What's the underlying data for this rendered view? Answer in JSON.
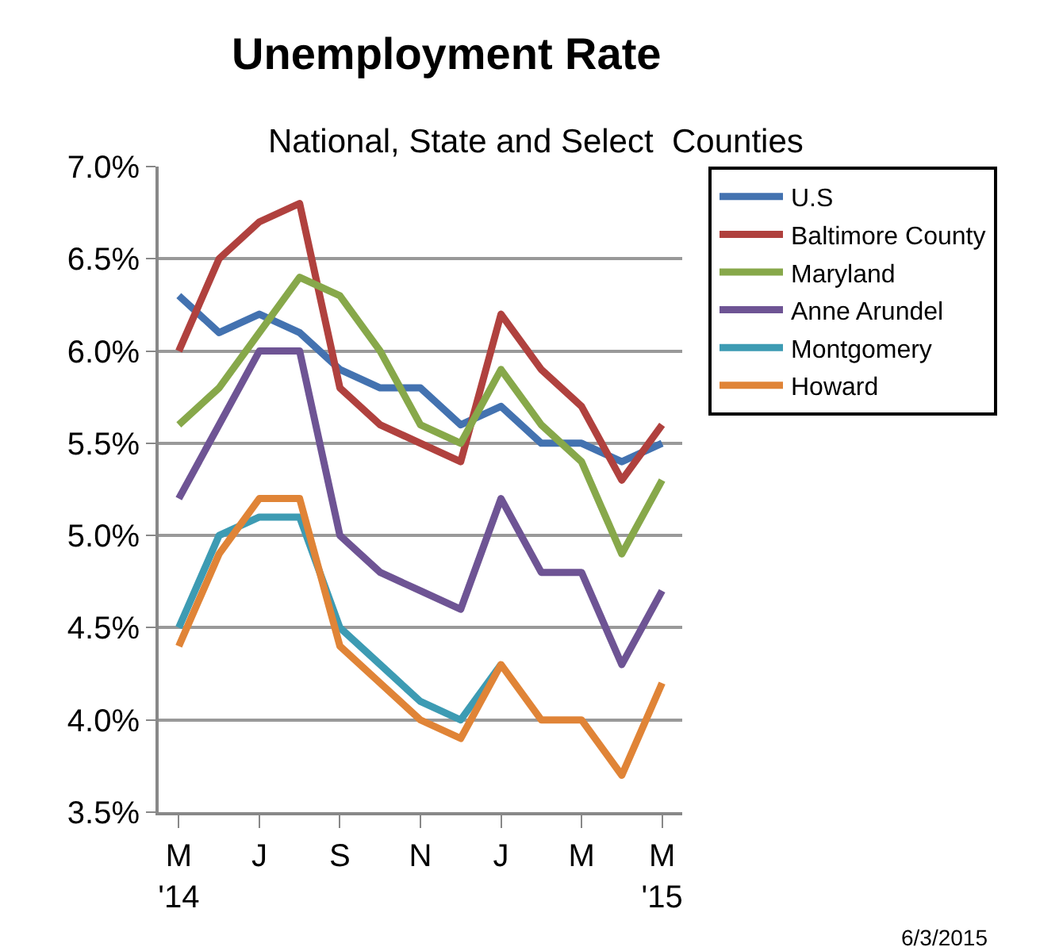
{
  "chart_data": {
    "type": "line",
    "title": "Unemployment Rate",
    "subtitle": "National, State and Select  Counties",
    "categories": [
      "M\n'14",
      null,
      "J",
      null,
      "S",
      null,
      "N",
      null,
      "J",
      null,
      "M",
      null,
      "M\n'15"
    ],
    "series": [
      {
        "name": "U.S",
        "color": "#4372b0",
        "values": [
          6.3,
          6.1,
          6.2,
          6.1,
          5.9,
          5.8,
          5.8,
          5.6,
          5.7,
          5.5,
          5.5,
          5.4,
          5.5
        ]
      },
      {
        "name": "Baltimore County",
        "color": "#b0413e",
        "values": [
          6.0,
          6.5,
          6.7,
          6.8,
          5.8,
          5.6,
          5.5,
          5.4,
          6.2,
          5.9,
          5.7,
          5.3,
          5.6
        ]
      },
      {
        "name": "Maryland",
        "color": "#87a84a",
        "values": [
          5.6,
          5.8,
          6.1,
          6.4,
          6.3,
          6.0,
          5.6,
          5.5,
          5.9,
          5.6,
          5.4,
          4.9,
          5.3
        ]
      },
      {
        "name": "Anne Arundel",
        "color": "#6e5494",
        "values": [
          5.2,
          5.6,
          6.0,
          6.0,
          5.0,
          4.8,
          4.7,
          4.6,
          5.2,
          4.8,
          4.8,
          4.3,
          4.7
        ]
      },
      {
        "name": "Montgomery",
        "color": "#3d9bb3",
        "values": [
          4.5,
          5.0,
          5.1,
          5.1,
          4.5,
          4.3,
          4.1,
          4.0,
          4.3,
          null,
          null,
          null,
          null
        ]
      },
      {
        "name": "Howard",
        "color": "#e08437",
        "values": [
          4.4,
          4.9,
          5.2,
          5.2,
          4.4,
          4.2,
          4.0,
          3.9,
          4.3,
          4.0,
          4.0,
          3.7,
          4.2
        ]
      }
    ],
    "ylim": [
      3.5,
      7.0
    ],
    "yticks": [
      {
        "value": 3.5,
        "label": "3.5%"
      },
      {
        "value": 4.0,
        "label": "4.0%"
      },
      {
        "value": 4.5,
        "label": "4.5%"
      },
      {
        "value": 5.0,
        "label": "5.0%"
      },
      {
        "value": 5.5,
        "label": "5.5%"
      },
      {
        "value": 6.0,
        "label": "6.0%"
      },
      {
        "value": 6.5,
        "label": "6.5%"
      },
      {
        "value": 7.0,
        "label": "7.0%"
      }
    ],
    "grid": "y",
    "legend": "right",
    "marker": "none",
    "line_style": "solid",
    "annotations": [
      "6/3/2015"
    ]
  }
}
